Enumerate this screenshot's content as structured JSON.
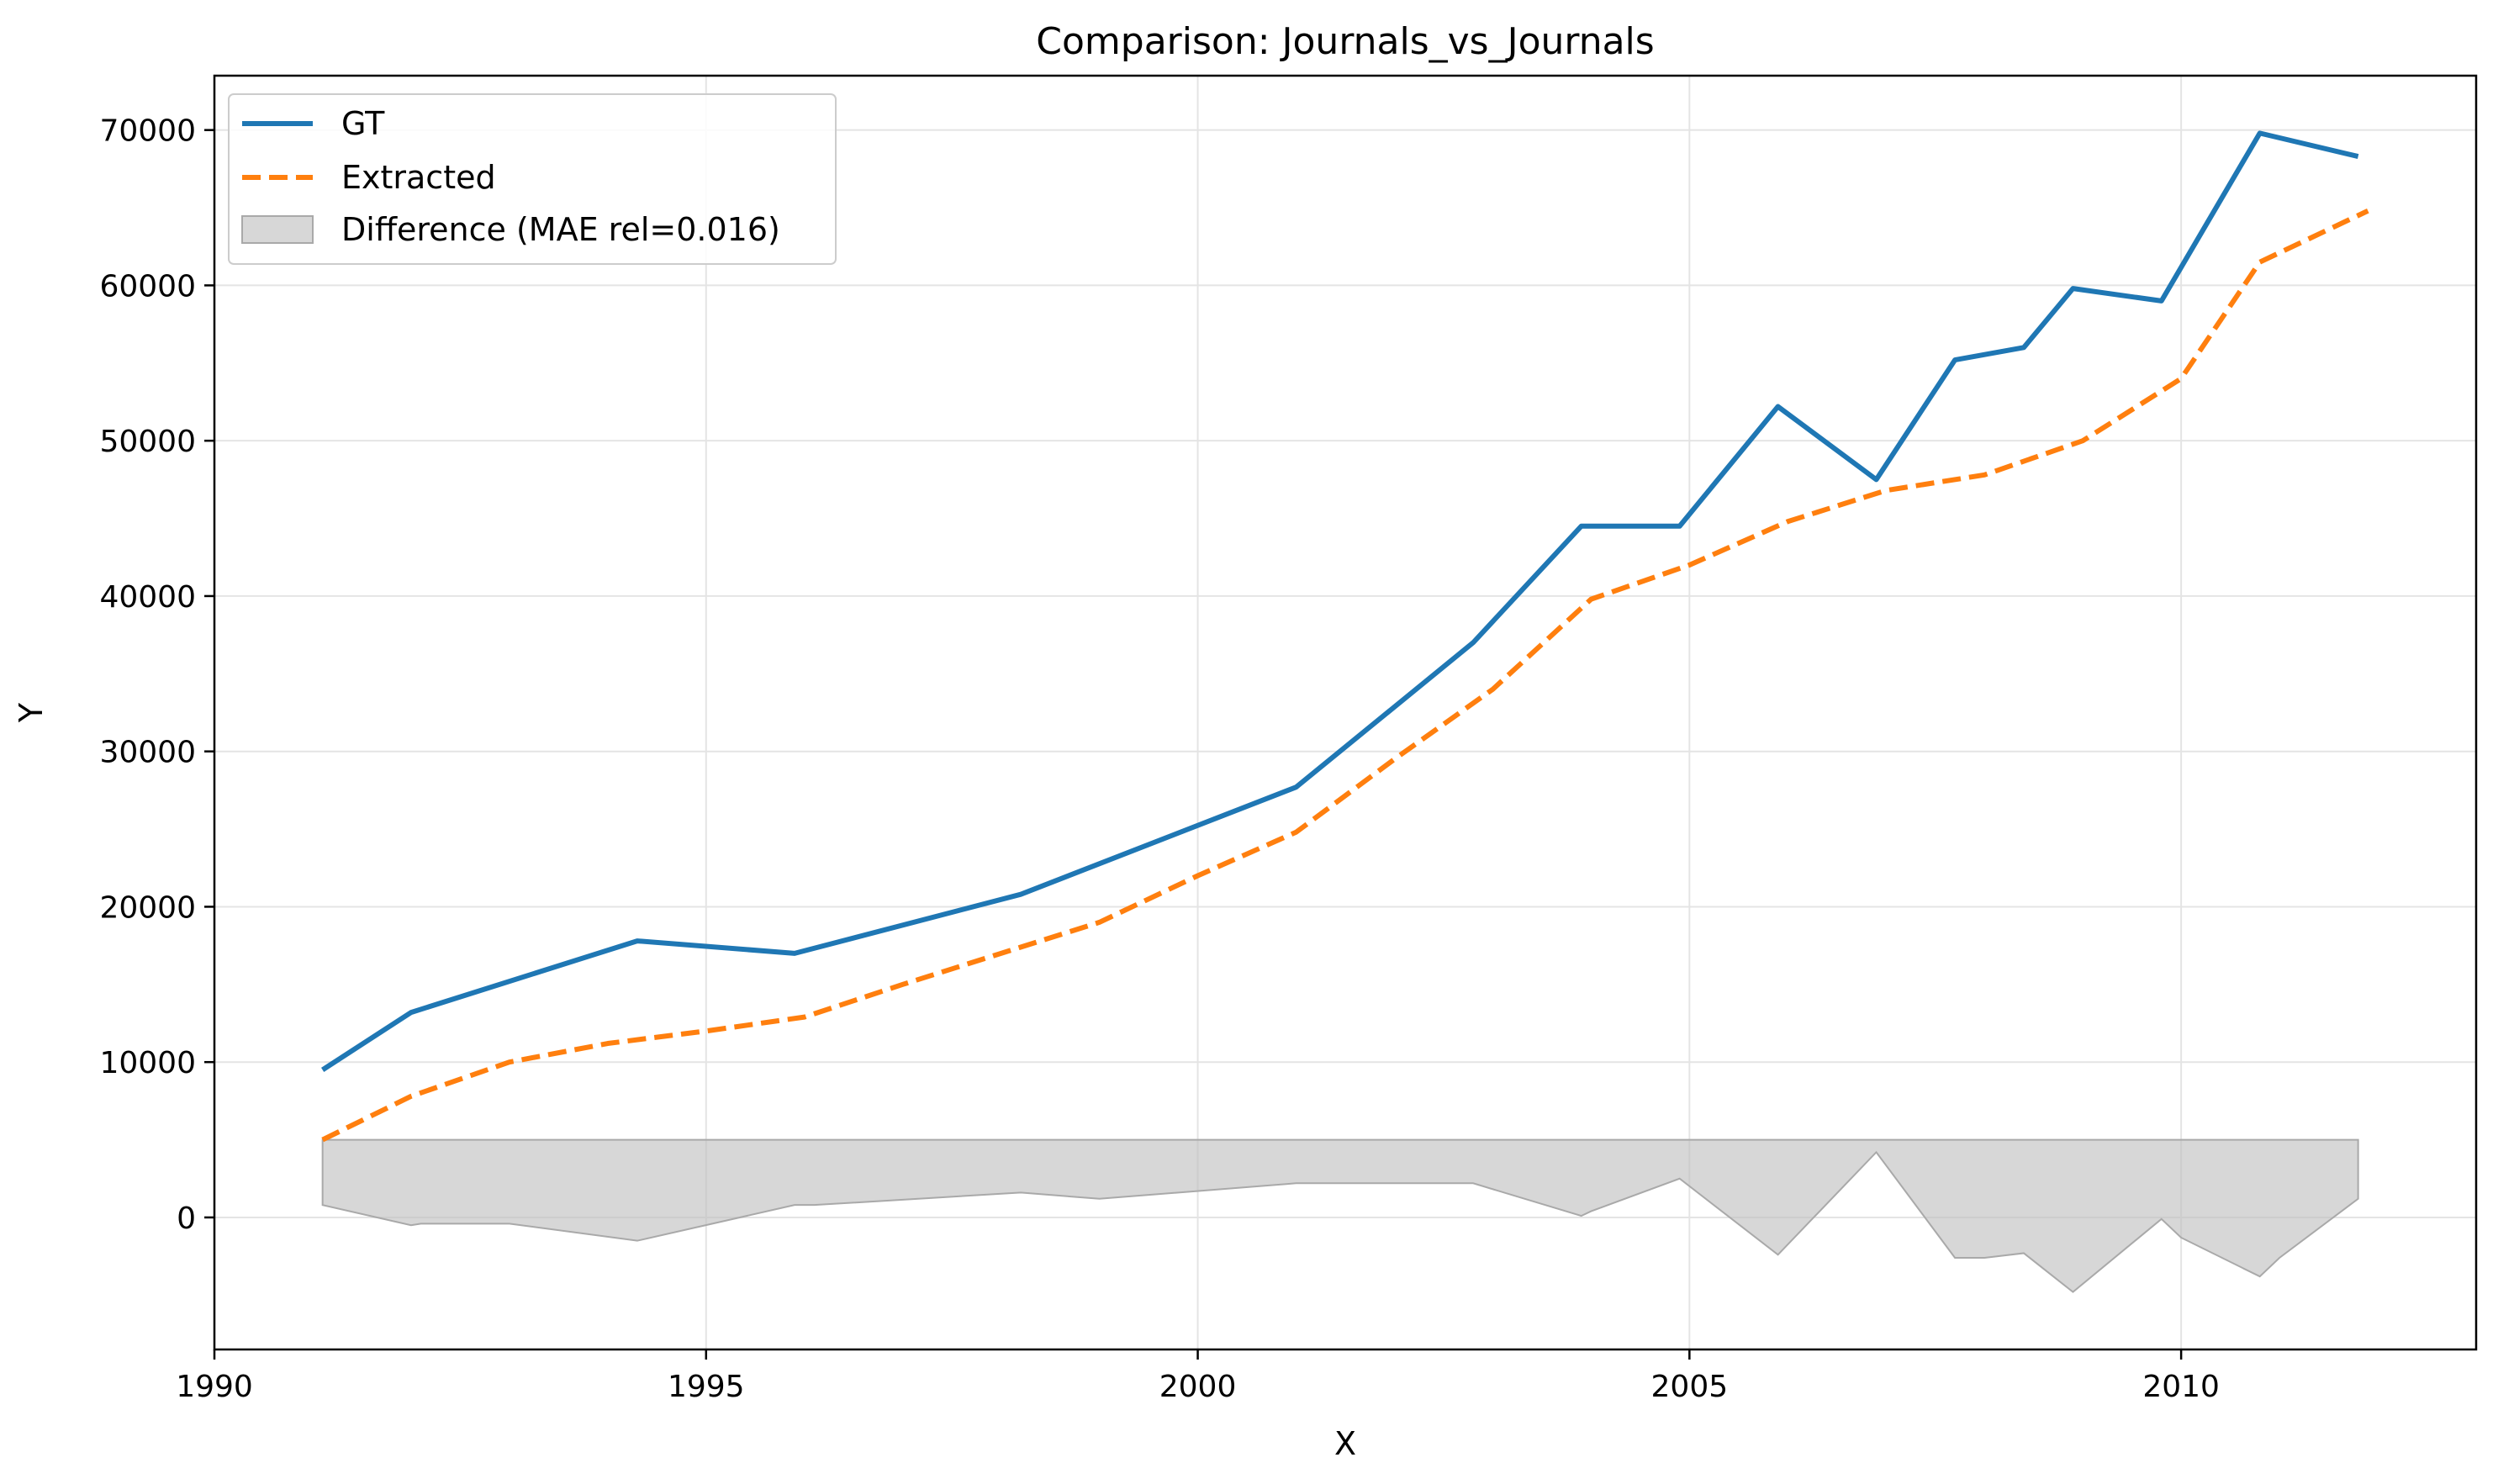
{
  "chart_data": {
    "type": "line",
    "title": "Comparison: Journals_vs_Journals",
    "xlabel": "X",
    "ylabel": "Y",
    "xlim": [
      1990,
      2013
    ],
    "ylim": [
      -8500,
      73500
    ],
    "xticks": [
      1990,
      1995,
      2000,
      2005,
      2010
    ],
    "yticks": [
      0,
      10000,
      20000,
      30000,
      40000,
      50000,
      60000,
      70000
    ],
    "grid": true,
    "legend_position": "top-left",
    "series": [
      {
        "name": "GT",
        "style": "solid",
        "color": "#1f77b4",
        "x": [
          1991.1,
          1992.0,
          1994.3,
          1995.9,
          1998.2,
          2001.0,
          2002.8,
          2003.9,
          2004.9,
          2005.9,
          2006.9,
          2007.7,
          2008.4,
          2008.9,
          2009.8,
          2010.8,
          2011.8
        ],
        "y": [
          9500,
          13200,
          17800,
          17000,
          20800,
          27700,
          37000,
          44500,
          44500,
          52200,
          47500,
          55200,
          56000,
          59800,
          59000,
          69800,
          68300
        ]
      },
      {
        "name": "Extracted",
        "style": "dashed",
        "color": "#ff7f0e",
        "x": [
          1991.1,
          1992.0,
          1993.0,
          1994.0,
          1995.0,
          1996.0,
          1997.0,
          1998.0,
          1999.0,
          2000.0,
          2001.0,
          2002.0,
          2003.0,
          2004.0,
          2005.0,
          2006.0,
          2007.0,
          2008.0,
          2009.0,
          2010.0,
          2010.8,
          2011.9
        ],
        "y": [
          5000,
          7800,
          10000,
          11200,
          12000,
          12900,
          15000,
          17000,
          19000,
          22000,
          24800,
          29500,
          34000,
          39800,
          42000,
          44800,
          46800,
          47800,
          50000,
          54000,
          61500,
          64800
        ]
      },
      {
        "name": "Difference (MAE rel=0.016)",
        "style": "band",
        "color": "#bfbfbf",
        "baseline": 5000,
        "x": [
          1991.1,
          1992.0,
          1992.1,
          1993.0,
          1994.3,
          1995.9,
          1996.1,
          1998.2,
          1999.0,
          2001.0,
          2002.8,
          2003.9,
          2004.0,
          2004.9,
          2005.9,
          2006.9,
          2007.7,
          2008.0,
          2008.4,
          2008.9,
          2009.8,
          2010.0,
          2010.8,
          2011.0,
          2011.8
        ],
        "y": [
          800,
          -500,
          -400,
          -400,
          -1500,
          800,
          800,
          1600,
          1200,
          2200,
          2200,
          100,
          400,
          2500,
          -2400,
          4200,
          -2600,
          -2600,
          -2300,
          -4800,
          -100,
          -1300,
          -3800,
          -2600,
          1200
        ]
      }
    ]
  }
}
